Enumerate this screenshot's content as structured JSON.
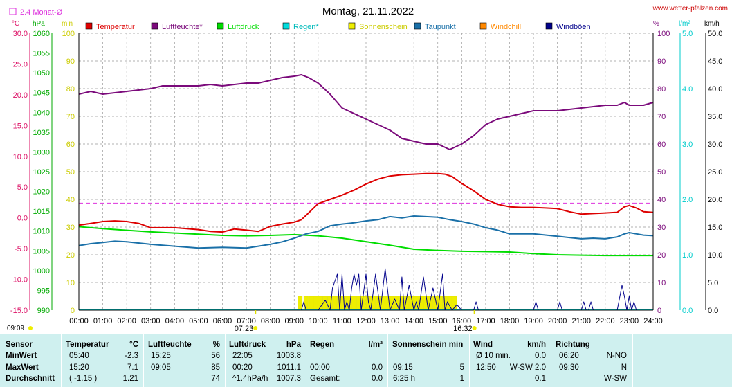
{
  "header": {
    "title": "Montag, 21.11.2022",
    "source": "www.wetter-pfalzen.com",
    "avg_label": "2.4 Monat-Ø"
  },
  "axes_units": {
    "temp": "°C",
    "pressure": "hPa",
    "sun": "min",
    "humidity": "%",
    "rain": "l/m²",
    "wind": "km/h"
  },
  "colors": {
    "temperatur": "#dd0000",
    "luftfeuchte": "#7b0a7b",
    "luftdruck": "#00dd00",
    "regen": "#00dddd",
    "sonnenschein": "#eeee00",
    "taupunkt": "#1a70a8",
    "windchill": "#ff8800",
    "windboeen": "#00008b",
    "avg_line": "#dd33dd",
    "temp_axis": "#dd1166",
    "pressure_axis": "#00aa00",
    "sun_axis": "#cccc00",
    "rain_axis": "#00cccc"
  },
  "chart_data": {
    "type": "line",
    "title": "Montag, 21.11.2022",
    "x_ticks": [
      "00:00",
      "01:00",
      "02:00",
      "03:00",
      "04:00",
      "05:00",
      "06:00",
      "07:00",
      "08:00",
      "09:00",
      "10:00",
      "11:00",
      "12:00",
      "13:00",
      "14:00",
      "15:00",
      "16:00",
      "17:00",
      "18:00",
      "19:00",
      "20:00",
      "21:00",
      "22:00",
      "23:00",
      "24:00"
    ],
    "axes": {
      "temp": {
        "min": -15,
        "max": 30,
        "ticks": [
          "30.0",
          "25.0",
          "20.0",
          "15.0",
          "10.0",
          "5.0",
          "0.0",
          "-5.0",
          "-10.0",
          "-15.0"
        ]
      },
      "pressure": {
        "min": 990,
        "max": 1060,
        "ticks": [
          "1060",
          "1055",
          "1050",
          "1045",
          "1040",
          "1035",
          "1030",
          "1025",
          "1020",
          "1015",
          "1010",
          "1005",
          "1000",
          "995",
          "990"
        ]
      },
      "sun": {
        "min": 0,
        "max": 100,
        "ticks": [
          "100",
          "90",
          "80",
          "70",
          "60",
          "50",
          "40",
          "30",
          "20",
          "10",
          "0"
        ]
      },
      "humidity": {
        "min": 0,
        "max": 100,
        "ticks": [
          "100",
          "90",
          "80",
          "70",
          "60",
          "50",
          "40",
          "30",
          "20",
          "10",
          "0"
        ]
      },
      "rain": {
        "min": 0,
        "max": 5,
        "ticks": [
          "5.0",
          "4.0",
          "3.0",
          "2.0",
          "1.0",
          "0.0"
        ]
      },
      "wind": {
        "min": 0,
        "max": 50,
        "ticks": [
          "50.0",
          "45.0",
          "40.0",
          "35.0",
          "30.0",
          "25.0",
          "20.0",
          "15.0",
          "10.0",
          "5.0",
          "0.0"
        ]
      }
    },
    "legend": [
      {
        "name": "Temperatur",
        "color": "#dd0000"
      },
      {
        "name": "Luftfeuchte*",
        "color": "#7b0a7b"
      },
      {
        "name": "Luftdruck",
        "color": "#00dd00"
      },
      {
        "name": "Regen*",
        "color": "#00dddd"
      },
      {
        "name": "Sonnenschein",
        "color": "#eeee00"
      },
      {
        "name": "Taupunkt",
        "color": "#1a70a8"
      },
      {
        "name": "Windchill",
        "color": "#ff8800"
      },
      {
        "name": "Windböen",
        "color": "#00008b"
      }
    ],
    "avg_temp": 2.4,
    "sunrise": "07:23",
    "sunset": "16:32",
    "sunrise_hour": 7.38,
    "sunset_hour": 16.53,
    "corner_time": "09:09",
    "series": [
      {
        "name": "Temperatur",
        "axis": "temp",
        "x": [
          0,
          0.5,
          1,
          1.5,
          2,
          2.5,
          3,
          4,
          5,
          5.5,
          6,
          6.5,
          7,
          7.5,
          8,
          8.5,
          9,
          9.3,
          9.6,
          10,
          10.5,
          11,
          11.5,
          12,
          12.5,
          13,
          13.5,
          14,
          14.5,
          15,
          15.3,
          15.6,
          16,
          16.5,
          17,
          17.5,
          18,
          18.5,
          19,
          19.5,
          20,
          20.5,
          21,
          21.5,
          22,
          22.5,
          22.8,
          23,
          23.3,
          23.6,
          24
        ],
        "y": [
          -1.2,
          -0.9,
          -0.6,
          -0.5,
          -0.6,
          -0.9,
          -1.6,
          -1.6,
          -1.9,
          -2.2,
          -2.3,
          -1.8,
          -2.0,
          -2.2,
          -1.4,
          -1.0,
          -0.7,
          -0.3,
          0.8,
          2.3,
          3.0,
          3.7,
          4.5,
          5.5,
          6.3,
          6.8,
          7.0,
          7.1,
          7.2,
          7.2,
          7.1,
          6.7,
          5.6,
          4.4,
          3.0,
          2.2,
          1.8,
          1.7,
          1.7,
          1.6,
          1.5,
          1.0,
          0.6,
          0.7,
          0.8,
          0.9,
          1.8,
          2.0,
          1.6,
          1.0,
          0.9
        ]
      },
      {
        "name": "Luftfeuchte*",
        "axis": "humidity",
        "x": [
          0,
          0.5,
          1,
          1.5,
          2,
          3,
          3.5,
          4,
          5,
          5.5,
          6,
          7,
          7.5,
          8,
          8.5,
          9,
          9.3,
          9.6,
          10,
          10.5,
          11,
          11.5,
          12,
          12.5,
          13,
          13.5,
          14,
          14.5,
          15,
          15.25,
          15.5,
          16,
          16.5,
          17,
          17.5,
          18,
          18.5,
          19,
          19.5,
          20,
          20.5,
          21,
          21.5,
          22,
          22.5,
          22.8,
          23,
          23.3,
          23.6,
          24
        ],
        "y": [
          78,
          79,
          78,
          78.5,
          79,
          80,
          81,
          81,
          81,
          81.5,
          81,
          82,
          82,
          83,
          84,
          84.5,
          85,
          84,
          82,
          78,
          73,
          71,
          69,
          67,
          65,
          62,
          61,
          60,
          60,
          59,
          58,
          60,
          63,
          67,
          69,
          70,
          71,
          72,
          72,
          72,
          72.5,
          73,
          73.5,
          74,
          74,
          75,
          74,
          74,
          74,
          75
        ]
      },
      {
        "name": "Luftdruck",
        "axis": "pressure",
        "x": [
          0,
          1,
          2,
          3,
          4,
          5,
          6,
          7,
          8,
          9,
          10,
          11,
          12,
          13,
          14,
          15,
          16,
          17,
          18,
          19,
          20,
          21,
          22,
          23,
          24
        ],
        "y": [
          1011.1,
          1010.6,
          1010.2,
          1009.8,
          1009.5,
          1009.2,
          1008.9,
          1008.8,
          1008.9,
          1009.1,
          1008.8,
          1008.2,
          1007.3,
          1006.4,
          1005.4,
          1005.1,
          1004.9,
          1004.8,
          1004.7,
          1004.3,
          1004.0,
          1003.9,
          1003.8,
          1003.8,
          1003.8
        ]
      },
      {
        "name": "Taupunkt",
        "axis": "temp",
        "x": [
          0,
          0.5,
          1,
          1.5,
          2,
          3,
          4,
          5,
          6,
          7,
          7.5,
          8,
          8.5,
          9,
          9.5,
          10,
          10.5,
          11,
          11.5,
          12,
          12.5,
          13,
          13.5,
          14,
          14.5,
          15,
          15.5,
          16,
          16.5,
          17,
          17.5,
          18,
          19,
          20,
          20.5,
          21,
          21.5,
          22,
          22.5,
          22.8,
          23,
          23.3,
          23.6,
          24
        ],
        "y": [
          -4.5,
          -4.2,
          -4.0,
          -3.8,
          -3.9,
          -4.3,
          -4.6,
          -4.9,
          -4.8,
          -4.9,
          -4.6,
          -4.3,
          -3.9,
          -3.3,
          -2.6,
          -2.2,
          -1.3,
          -1.0,
          -0.8,
          -0.5,
          -0.3,
          0.2,
          0.0,
          0.3,
          0.2,
          0.1,
          -0.3,
          -0.6,
          -1.0,
          -1.6,
          -2.0,
          -2.6,
          -2.6,
          -3.0,
          -3.2,
          -3.4,
          -3.3,
          -3.4,
          -3.1,
          -2.6,
          -2.4,
          -2.6,
          -2.8,
          -2.9
        ]
      },
      {
        "name": "Windböen",
        "axis": "wind",
        "x": [
          0,
          9.2,
          9.3,
          9.4,
          9.5,
          9.6,
          10,
          10.3,
          10.5,
          10.6,
          10.8,
          10.9,
          11,
          11.1,
          11.2,
          11.3,
          11.4,
          11.5,
          11.6,
          11.7,
          11.8,
          12,
          12.1,
          12.2,
          12.4,
          12.6,
          12.8,
          13,
          13.2,
          13.4,
          13.5,
          13.6,
          13.8,
          14,
          14.1,
          14.2,
          14.4,
          14.6,
          14.8,
          15,
          15.2,
          15.3,
          15.4,
          15.6,
          15.8,
          16,
          16.5,
          16.6,
          16.7,
          16.8,
          17,
          19,
          19.1,
          19.2,
          19.3,
          19.5,
          20,
          20.1,
          20.2,
          20.3,
          20.5,
          21,
          21.1,
          21.2,
          21.3,
          21.4,
          21.5,
          22,
          22.5,
          22.7,
          22.8,
          22.9,
          23,
          23.1,
          23.2,
          23.3,
          23.4,
          24
        ],
        "y": [
          0,
          0,
          0,
          1.5,
          0,
          0,
          0,
          1.8,
          0,
          4,
          6.5,
          0,
          6.5,
          0,
          1.5,
          0,
          4,
          6.5,
          4.5,
          6.5,
          0,
          6.5,
          1.5,
          0,
          6.5,
          0,
          7.5,
          0,
          2,
          0,
          6,
          0,
          4.5,
          0,
          1.5,
          0,
          6,
          0,
          4,
          0,
          6.5,
          0,
          1.5,
          0,
          1,
          0,
          0,
          1.5,
          0,
          0,
          0,
          0,
          1.5,
          0,
          0,
          0,
          0,
          1.5,
          0,
          0,
          0,
          0,
          1.5,
          0,
          0,
          1.5,
          0,
          0,
          0,
          4.5,
          2.5,
          0,
          2.5,
          0,
          1.5,
          0,
          0,
          0
        ]
      },
      {
        "name": "Sonnenschein",
        "axis": "sun",
        "hours": [
          9.15,
          9.4,
          9.6,
          9.8,
          10,
          10.2,
          10.4,
          10.6,
          10.8,
          11,
          11.2,
          11.4,
          11.6,
          11.8,
          12,
          12.2,
          12.4,
          12.6,
          12.8,
          13,
          13.2,
          13.4,
          13.6,
          13.8,
          14,
          14.2,
          14.4,
          14.6,
          14.8,
          15,
          15.2,
          15.4,
          15.6
        ],
        "minutes": [
          5,
          5,
          5,
          5,
          5,
          5,
          5,
          5,
          5,
          5,
          5,
          5,
          5,
          5,
          5,
          5,
          5,
          5,
          5,
          5,
          5,
          5,
          5,
          5,
          5,
          5,
          5,
          5,
          5,
          5,
          5,
          5,
          5
        ]
      }
    ]
  },
  "table": {
    "headers": {
      "sensor": "Sensor",
      "temp": "Temperatur",
      "temp_unit": "°C",
      "hum": "Luftfeuchte",
      "hum_unit": "%",
      "pres": "Luftdruck",
      "pres_unit": "hPa",
      "rain": "Regen",
      "rain_unit": "l/m²",
      "sun": "Sonnenschein min",
      "wind": "Wind",
      "wind_unit": "km/h",
      "dir": "Richtung"
    },
    "rows": [
      {
        "label": "MinWert",
        "temp_time": "05:40",
        "temp_val": "-2.3",
        "hum_time": "15:25",
        "hum_val": "56",
        "pres_time": "22:05",
        "pres_val": "1003.8",
        "rain_time": "",
        "rain_val": "",
        "sun_time": "",
        "sun_val": "",
        "wind_time": "Ø 10 min.",
        "wind_val": "0.0",
        "dir_time": "06:20",
        "dir_val": "N-NO"
      },
      {
        "label": "MaxWert",
        "temp_time": "15:20",
        "temp_val": "7.1",
        "hum_time": "09:05",
        "hum_val": "85",
        "pres_time": "00:20",
        "pres_val": "1011.1",
        "rain_time": "00:00",
        "rain_val": "0.0",
        "sun_time": "09:15",
        "sun_val": "5",
        "wind_time": "12:50",
        "wind_val": "W-SW 2.0",
        "dir_time": "09:30",
        "dir_val": "N"
      },
      {
        "label": "Durchschnitt",
        "temp_time": "( -1.15 )",
        "temp_val": "1.21",
        "hum_time": "",
        "hum_val": "74",
        "pres_time": "^1.4hPa/h",
        "pres_val": "1007.3",
        "rain_time": "Gesamt:",
        "rain_val": "0.0",
        "sun_time": "6:25 h",
        "sun_val": "1",
        "wind_time": "",
        "wind_val": "0.1",
        "dir_time": "",
        "dir_val": "W-SW"
      }
    ]
  }
}
